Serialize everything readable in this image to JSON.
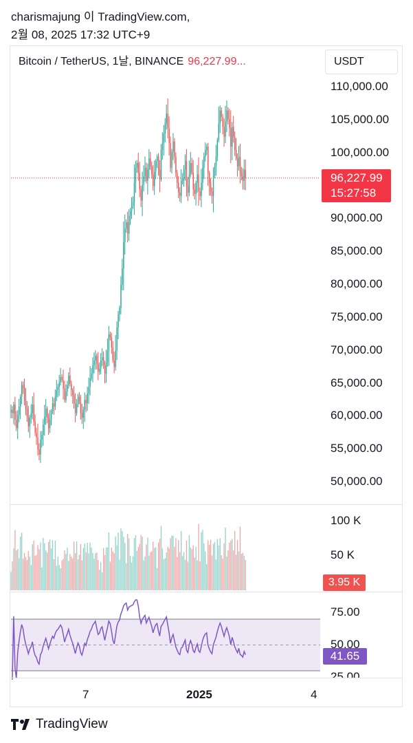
{
  "header": {
    "line1": "charismajung 이 TradingView.com,",
    "line2": "2월 08, 2025 17:32 UTC+9"
  },
  "legend": {
    "title": "Bitcoin / TetherUS, 1날, BINANCE",
    "price": "96,227.99..."
  },
  "currency_button": "USDT",
  "price_axis": {
    "ticks": [
      "110,000.00",
      "105,000.00",
      "100,000.00",
      "90,000.00",
      "85,000.00",
      "80,000.00",
      "75,000.00",
      "70,000.00",
      "65,000.00",
      "60,000.00",
      "55,000.00",
      "50,000.00"
    ]
  },
  "last_price": {
    "price": "96,227.99",
    "countdown": "15:27:58"
  },
  "volume_axis": {
    "ticks": [
      "100 K",
      "50 K"
    ],
    "last": "3.95 K"
  },
  "rsi_axis": {
    "ticks": [
      "75.00",
      "50.00",
      "25.00"
    ],
    "last": "41.65"
  },
  "time_axis": {
    "labels": [
      "7",
      "2025",
      "4"
    ]
  },
  "footer": {
    "brand": "TradingView"
  },
  "colors": {
    "up": "#26a69a",
    "down": "#ef5350",
    "rsi": "#7e57c2",
    "rsi_band": "#ede7f6"
  },
  "chart_data": {
    "type": "candlestick",
    "symbol": "Bitcoin / TetherUS",
    "interval": "1날",
    "exchange": "BINANCE",
    "ylim": [
      48000,
      113000
    ],
    "close": [
      61000,
      60500,
      61800,
      59500,
      58200,
      60200,
      61500,
      63000,
      64800,
      64200,
      62500,
      61200,
      60000,
      58500,
      59800,
      60500,
      61800,
      59200,
      57500,
      56800,
      55000,
      54200,
      56500,
      57200,
      58800,
      60000,
      61200,
      59800,
      58200,
      59500,
      60800,
      62000,
      61500,
      63000,
      64000,
      64500,
      65200,
      66000,
      65500,
      64200,
      62500,
      63800,
      64800,
      66200,
      65000,
      64000,
      63200,
      62000,
      60500,
      61800,
      63000,
      62200,
      60500,
      59800,
      61000,
      62500,
      62000,
      63500,
      64500,
      65800,
      66500,
      67800,
      68500,
      69200,
      68000,
      66800,
      67200,
      68500,
      69000,
      67800,
      66500,
      68200,
      70000,
      72500,
      72000,
      70500,
      68500,
      67500,
      70000,
      73500,
      75500,
      76500,
      80000,
      82500,
      86500,
      88500,
      89500,
      87800,
      90500,
      91200,
      92000,
      92500,
      95500,
      97800,
      98500,
      97000,
      94500,
      92800,
      95200,
      96500,
      97800,
      95800,
      97500,
      99200,
      98000,
      96800,
      95000,
      97200,
      98800,
      99500,
      97500,
      96000,
      100500,
      101500,
      103000,
      104500,
      106000,
      103800,
      101500,
      97800,
      100200,
      101800,
      99500,
      97000,
      95500,
      94000,
      93500,
      95800,
      96200,
      97500,
      98800,
      95000,
      94000,
      96800,
      98500,
      97000,
      94500,
      93800,
      95500,
      96800,
      94200,
      93500,
      95500,
      97800,
      99500,
      100500,
      101000,
      97000,
      95500,
      94200,
      93500,
      96500,
      98000,
      99500,
      102000,
      104500,
      106500,
      105500,
      104000,
      102500,
      104800,
      106500,
      105200,
      103800,
      101000,
      104000,
      102500,
      100500,
      99200,
      98000,
      99500,
      97000,
      96500,
      95800,
      97500,
      96228
    ],
    "rsi": {
      "overbought": 70,
      "oversold": 30,
      "mid": 50,
      "last": 41.65
    },
    "volume_last": "3.95 K"
  }
}
